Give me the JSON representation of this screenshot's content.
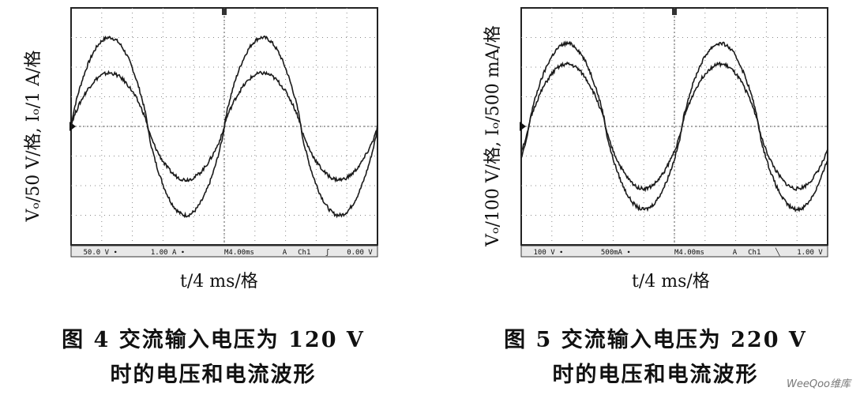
{
  "figures": [
    {
      "ylabel": "Vₒ/50 V/格, Iₒ/1 A/格",
      "xlabel": "t/4 ms/格",
      "caption_line1": "图 4   交流输入电压为 120 V",
      "caption_line2": "时的电压和电流波形",
      "status": [
        "50.0 V ∙",
        "1.00 A ∙",
        "M4.00ms",
        "A",
        "Ch1",
        "ʃ",
        "0.00 V"
      ]
    },
    {
      "ylabel": "Vₒ/100 V/格, Iₒ/500 mA/格",
      "xlabel": "t/4 ms/格",
      "caption_line1": "图 5   交流输入电压为 220 V",
      "caption_line2": "时的电压和电流波形",
      "status": [
        "100 V ∙",
        "500mA ∙",
        "M4.00ms",
        "A",
        "Ch1",
        "╲",
        "1.00 V"
      ]
    }
  ],
  "watermark": "WeeQoo维库",
  "chart_data": [
    {
      "type": "line",
      "x_divisions": 10,
      "y_divisions": 8,
      "series": [
        {
          "amplitude_div": 3.0,
          "phase_offset_div": 0.0,
          "period_div": 5.0
        },
        {
          "amplitude_div": 1.8,
          "phase_offset_div": 0.0,
          "period_div": 5.0
        }
      ]
    },
    {
      "type": "line",
      "x_divisions": 10,
      "y_divisions": 8,
      "series": [
        {
          "amplitude_div": 2.8,
          "phase_offset_div": 0.25,
          "period_div": 5.0
        },
        {
          "amplitude_div": 2.1,
          "phase_offset_div": 0.25,
          "period_div": 5.0
        }
      ]
    }
  ]
}
